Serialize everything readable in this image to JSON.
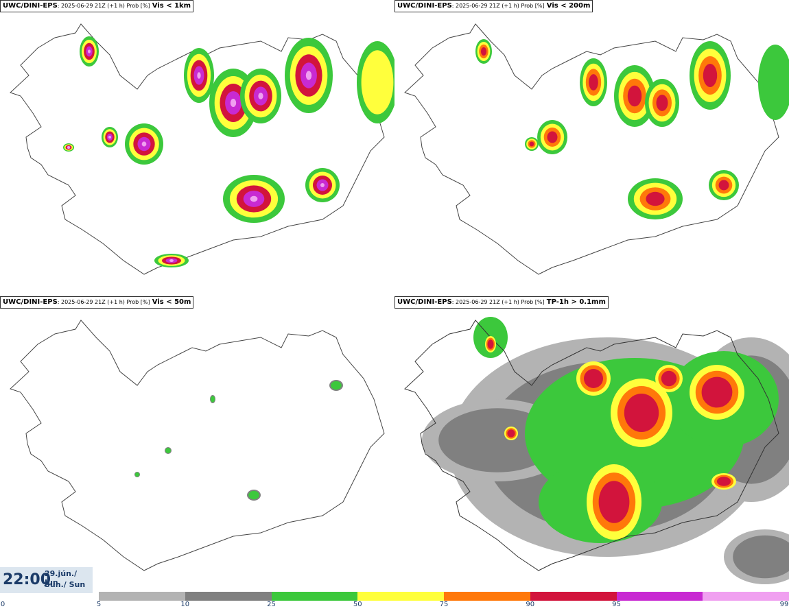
{
  "panels": [
    {
      "model": "UWC/DINI-EPS",
      "meta": ": 2025-06-29 21Z (+1 h) Prob [%]",
      "variable": "Vis < 1km"
    },
    {
      "model": "UWC/DINI-EPS",
      "meta": ": 2025-06-29 21Z (+1 h) Prob [%]",
      "variable": "Vis < 200m"
    },
    {
      "model": "UWC/DINI-EPS",
      "meta": ": 2025-06-29 21Z (+1 h) Prob [%]",
      "variable": "Vis < 50m"
    },
    {
      "model": "UWC/DINI-EPS",
      "meta": ": 2025-06-29 21Z (+1 h) Prob [%]",
      "variable": "TP-1h > 0.1mm"
    }
  ],
  "valid": {
    "time": "22:00",
    "date_line1": "29.jún./ Jun",
    "date_line2": "Sun./ Sun"
  },
  "colorbar": {
    "ticks": [
      "0",
      "5",
      "10",
      "25",
      "50",
      "75",
      "90",
      "95",
      "99"
    ],
    "colors": [
      "#b3b3b3",
      "#808080",
      "#3cc83c",
      "#ffff3c",
      "#ff780a",
      "#d2143c",
      "#c82ad2",
      "#f0a0f0"
    ]
  }
}
